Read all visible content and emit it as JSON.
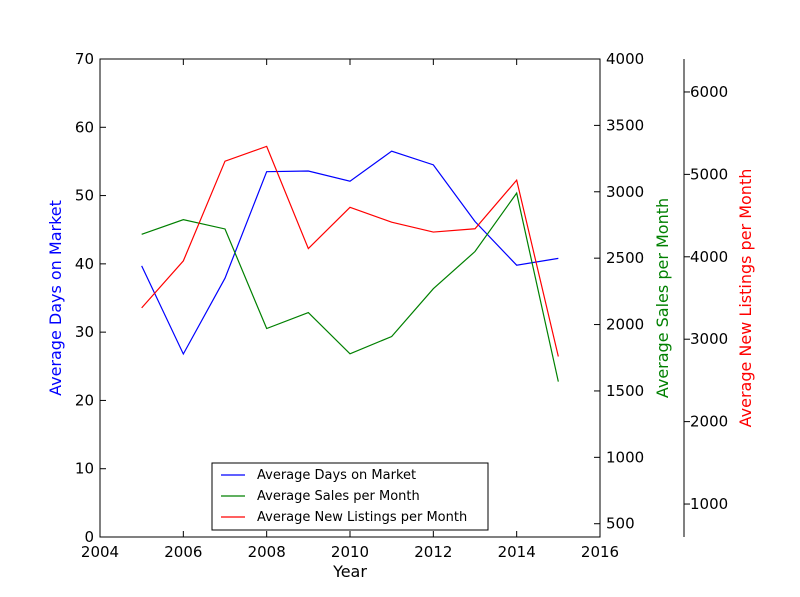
{
  "chart_data": {
    "type": "line",
    "x": [
      2005,
      2006,
      2007,
      2008,
      2009,
      2010,
      2011,
      2012,
      2013,
      2014,
      2015
    ],
    "xlabel": "Year",
    "xlim": [
      2004,
      2016
    ],
    "xticks": [
      2004,
      2006,
      2008,
      2010,
      2012,
      2014,
      2016
    ],
    "axes": {
      "days": {
        "label": "Average Days on Market",
        "color": "#0000ff",
        "ylim": [
          0,
          70
        ],
        "ticks": [
          0,
          10,
          20,
          30,
          40,
          50,
          60,
          70
        ]
      },
      "sales": {
        "label": "Average Sales per Month",
        "color": "#008000",
        "ylim": [
          400,
          4000
        ],
        "ticks": [
          500,
          1000,
          1500,
          2000,
          2500,
          3000,
          3500,
          4000
        ]
      },
      "listings": {
        "label": "Average New Listings per Month",
        "color": "#ff0000",
        "ylim": [
          600,
          6400
        ],
        "ticks": [
          1000,
          2000,
          3000,
          4000,
          5000,
          6000
        ]
      }
    },
    "series": [
      {
        "name": "Average Days on Market",
        "axis": "days",
        "color": "#0000ff",
        "values": [
          39.7,
          26.8,
          37.9,
          53.5,
          53.6,
          52.1,
          56.5,
          54.5,
          46.2,
          39.8,
          40.8
        ]
      },
      {
        "name": "Average Sales per Month",
        "axis": "sales",
        "color": "#008000",
        "values": [
          2680,
          2790,
          2720,
          1970,
          2090,
          1780,
          1910,
          2270,
          2550,
          2990,
          1570
        ]
      },
      {
        "name": "Average New Listings per Month",
        "axis": "listings",
        "color": "#ff0000",
        "values": [
          3380,
          3950,
          5160,
          5340,
          4100,
          4600,
          4420,
          4300,
          4340,
          4930,
          2790
        ]
      }
    ],
    "legend": {
      "placement": "lower-center"
    }
  }
}
